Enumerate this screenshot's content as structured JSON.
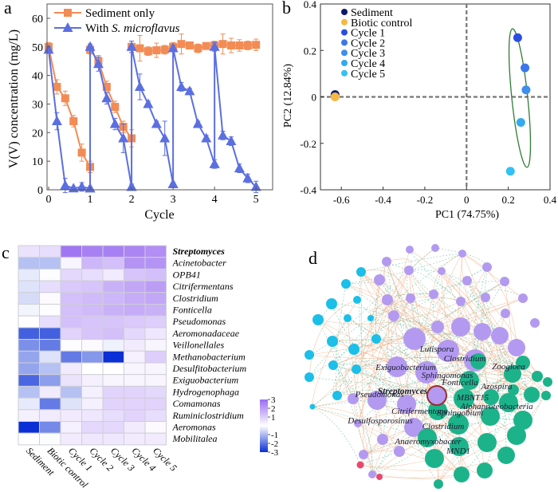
{
  "panels": {
    "a": "a",
    "b": "b",
    "c": "c",
    "d": "d"
  },
  "chart_data": [
    {
      "id": "a",
      "type": "line",
      "title": "",
      "xlabel": "Cycle",
      "ylabel": "V(V) concentration (mg/L)",
      "xlim": [
        0,
        5.4
      ],
      "ylim": [
        0,
        65
      ],
      "xticks": [
        0,
        1,
        2,
        3,
        4,
        5
      ],
      "yticks": [
        0,
        10,
        20,
        30,
        40,
        50,
        60
      ],
      "legend_position": "top-left",
      "series": [
        {
          "name": "Sediment only",
          "name_italic_part": "",
          "color": "#f28c55",
          "marker": "square",
          "segments": [
            {
              "x": [
                0,
                0.2,
                0.4,
                0.6,
                0.8,
                1.0
              ],
              "y": [
                50,
                36,
                32,
                24,
                13,
                8
              ],
              "err": [
                1.5,
                2.5,
                2.5,
                2,
                3,
                2
              ]
            },
            {
              "x": [
                1.0,
                1.2,
                1.4,
                1.6,
                1.8,
                2.0
              ],
              "y": [
                49,
                45,
                36,
                29,
                22,
                18
              ],
              "err": [
                1.5,
                2,
                2,
                2,
                2,
                3
              ]
            },
            {
              "x": [
                2.0,
                2.2,
                2.4,
                2.6,
                2.8,
                3.0,
                3.2,
                3.4,
                3.6,
                3.8,
                4.0,
                4.2,
                4.4,
                4.6,
                4.8,
                5.0
              ],
              "y": [
                50,
                49.5,
                48.5,
                48.8,
                49,
                50,
                51,
                50.5,
                49.5,
                50.3,
                50.5,
                51,
                50.5,
                50.5,
                50.5,
                50.7
              ],
              "err": [
                2,
                4.5,
                1.5,
                2.5,
                1.5,
                1.5,
                3.5,
                1,
                1.5,
                1,
                1.5,
                3.5,
                2.5,
                2,
                1.5,
                2
              ]
            }
          ]
        },
        {
          "name": "With ",
          "name_italic_part": "S. microflavus",
          "color": "#5b6fe0",
          "marker": "triangle",
          "segments": [
            {
              "x": [
                0,
                0.2,
                0.4,
                0.6,
                0.8,
                1.0
              ],
              "y": [
                49,
                24,
                1.5,
                0.5,
                1,
                0.5
              ],
              "err": [
                1,
                3,
                2.5,
                0.5,
                1.5,
                0.5
              ]
            },
            {
              "x": [
                1.0,
                1.0,
                1.2,
                1.4,
                1.6,
                1.8,
                2.0
              ],
              "y": [
                0.5,
                50,
                44,
                32,
                23,
                18,
                1
              ],
              "err": [
                0,
                1,
                2.5,
                2,
                2,
                5,
                1
              ]
            },
            {
              "x": [
                2.0,
                2.0,
                2.2,
                2.4,
                2.6,
                2.8,
                3.0
              ],
              "y": [
                1,
                50,
                36,
                30,
                23,
                18,
                2
              ],
              "err": [
                0,
                2,
                4.5,
                1,
                1,
                6,
                0.5
              ]
            },
            {
              "x": [
                3.0,
                3.0,
                3.2,
                3.4,
                3.6,
                3.8,
                4.0
              ],
              "y": [
                2,
                49.5,
                36,
                34.5,
                23,
                18,
                9
              ],
              "err": [
                0,
                1,
                1.5,
                1,
                1,
                1,
                1.5
              ]
            },
            {
              "x": [
                4.0,
                4.0,
                4.2,
                4.4,
                4.6,
                4.8,
                5.0
              ],
              "y": [
                9,
                50,
                19,
                17,
                7.5,
                4,
                1
              ],
              "err": [
                0,
                1.5,
                1.5,
                1.5,
                1.5,
                1.5,
                2
              ]
            }
          ]
        }
      ]
    },
    {
      "id": "b",
      "type": "scatter",
      "title": "",
      "xlabel": "PC1 (74.75%)",
      "ylabel": "PC2 (12.84%)",
      "xlim": [
        -0.7,
        0.4
      ],
      "ylim": [
        -0.4,
        0.4
      ],
      "xticks": [
        -0.6,
        -0.4,
        -0.2,
        0,
        0.2,
        0.4
      ],
      "yticks": [
        -0.4,
        -0.2,
        0,
        0.2,
        0.4
      ],
      "xtick_labels": [
        "-0.6",
        "-0.4",
        "-0.2",
        "0",
        "0.2",
        "0.4"
      ],
      "ytick_labels": [
        "-0.4",
        "-0.2",
        "0",
        "0.2",
        "0.4"
      ],
      "legend_position": "top-left",
      "grid": false,
      "points": [
        {
          "name": "Sediment",
          "x": -0.63,
          "y": 0.01,
          "color": "#0b1a6e"
        },
        {
          "name": "Biotic control",
          "x": -0.63,
          "y": 0.0,
          "color": "#f5b942"
        },
        {
          "name": "Cycle 1",
          "x": 0.245,
          "y": 0.255,
          "color": "#2a4fe0"
        },
        {
          "name": "Cycle 2",
          "x": 0.28,
          "y": 0.125,
          "color": "#3a77ea"
        },
        {
          "name": "Cycle 3",
          "x": 0.285,
          "y": 0.03,
          "color": "#3c8fec"
        },
        {
          "name": "Cycle 4",
          "x": 0.26,
          "y": -0.11,
          "color": "#33aaee"
        },
        {
          "name": "Cycle 5",
          "x": 0.21,
          "y": -0.32,
          "color": "#35c0f5"
        }
      ],
      "ellipse": {
        "color": "#2e7d32",
        "cx": 0.255,
        "cy": -0.005,
        "rx": 0.038,
        "ry": 0.3,
        "rotation_deg": -6
      }
    },
    {
      "id": "c",
      "type": "heatmap",
      "title": "",
      "columns": [
        "Sediment",
        "Biotic control",
        "Cycle 1",
        "Cycle 2",
        "Cycle 3",
        "Cycle 4",
        "Cycle 5"
      ],
      "rows": [
        "Streptomyces",
        "Acinetobacter",
        "OPB41",
        "Citrifermentans",
        "Clostridium",
        "Fonticella",
        "Pseudomonas",
        "Aeromonadaceae",
        "Veillonellales",
        "Methanobacterium",
        "Desulfitobacterium",
        "Exiguobacterium",
        "Hydrogenophaga",
        "Comamonas",
        "Ruminiclostridium",
        "Aeromonas",
        "Mobilitalea"
      ],
      "bold_rows": [
        "Streptomyces"
      ],
      "values": [
        [
          0.6,
          0.7,
          2.8,
          2.6,
          2.6,
          2.5,
          2.3
        ],
        [
          -0.9,
          -0.9,
          0.2,
          1.5,
          1.3,
          2.2,
          2.2
        ],
        [
          -0.3,
          0.05,
          0.8,
          0.7,
          0.4,
          1.2,
          1.3
        ],
        [
          -0.4,
          0.7,
          1.1,
          1.2,
          1.6,
          1.8,
          2.0
        ],
        [
          -0.5,
          0.1,
          1.3,
          1.4,
          1.5,
          1.7,
          1.8
        ],
        [
          -0.15,
          0.05,
          1.3,
          1.4,
          1.6,
          1.7,
          1.6
        ],
        [
          0.0,
          0.7,
          1.3,
          1.2,
          1.2,
          1.1,
          1.0
        ],
        [
          -2.3,
          -2.3,
          0.9,
          1.2,
          1.3,
          0.8,
          0.5
        ],
        [
          -1.6,
          -1.9,
          0.05,
          0.1,
          -0.2,
          0.4,
          0.2
        ],
        [
          -1.3,
          -0.4,
          -1.9,
          -1.5,
          -3.0,
          0.3,
          1.0
        ],
        [
          -1.3,
          -0.9,
          0.4,
          0.0,
          0.0,
          0.2,
          0.2
        ],
        [
          -2.2,
          -1.4,
          0.6,
          0.3,
          0.2,
          0.2,
          0.2
        ],
        [
          -0.9,
          0.4,
          -0.9,
          0.3,
          0.9,
          0.9,
          0.8
        ],
        [
          -0.3,
          -1.9,
          -0.4,
          0.3,
          0.9,
          0.9,
          0.9
        ],
        [
          0.3,
          0.4,
          0.4,
          0.5,
          0.7,
          0.9,
          0.7
        ],
        [
          -3.0,
          -1.7,
          0.3,
          0.8,
          0.8,
          0.4,
          0.1
        ],
        [
          0.0,
          -0.05,
          0.4,
          0.5,
          0.5,
          0.4,
          0.4
        ]
      ],
      "colorbar": {
        "ticks": [
          3,
          2,
          1,
          -1,
          -2,
          -3
        ],
        "range": [
          -3,
          3
        ],
        "low_color": "#0a2fd6",
        "mid_color": "#ffffff",
        "high_color": "#9a6cf2"
      }
    },
    {
      "id": "d",
      "type": "network",
      "title": "",
      "module_colors": {
        "purple": "#b39af0",
        "cyan": "#1bbfe8",
        "green": "#1db38a",
        "red": "#e8486e"
      },
      "edge_colors": {
        "positive": "#f2b48f",
        "negative": "#5fb89a"
      },
      "hub_node": {
        "label": "Streptomyces",
        "ring_color": "#9b2c2c"
      },
      "labels": [
        "Lutispora",
        "Clostridium",
        "Exiguobacterium",
        "Zoogloea",
        "Sphingomonas",
        "Fonticella",
        "Azospira",
        "Streptomyces",
        "Pseudomonas",
        "MBNT15",
        "Alphaproteobacteria",
        "Citrifermentans",
        "Sphingobium",
        "Desulfosporosinus",
        "Clostridium",
        "Anaeromyxobacter",
        "MND1"
      ]
    }
  ]
}
